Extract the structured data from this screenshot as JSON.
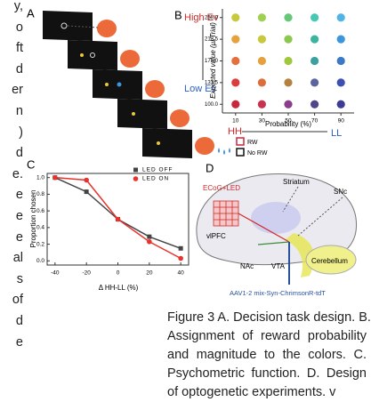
{
  "left_text": [
    "y,",
    "o",
    "ft",
    "d",
    "er",
    "n",
    ")",
    "d",
    "e.",
    "e",
    "e",
    "e",
    "al",
    "s",
    "of",
    "d",
    "e"
  ],
  "panel_a": {
    "label": "A",
    "legend": [
      "RW",
      "No RW"
    ]
  },
  "panel_b": {
    "label": "B",
    "high": "High Ev",
    "low": "Low Ev",
    "hh": "HH",
    "ll": "LL",
    "chart": {
      "type": "scatter",
      "y_label": "Expected value (µl/Trial)",
      "x_label": "Probability (%)",
      "x": [
        10,
        30,
        50,
        70,
        90,
        10,
        30,
        50,
        70,
        90,
        10,
        30,
        50,
        70,
        90,
        10,
        30,
        50,
        70,
        90,
        10,
        30,
        50,
        70,
        90
      ],
      "y": [
        250,
        250,
        250,
        250,
        250,
        212.5,
        212.5,
        212.5,
        212.5,
        212.5,
        175,
        175,
        175,
        175,
        175,
        137.5,
        137.5,
        137.5,
        137.5,
        137.5,
        100,
        100,
        100,
        100,
        100
      ],
      "colors": [
        "#c8c83c",
        "#a0d050",
        "#64c878",
        "#46c8b4",
        "#50b4e6",
        "#e6a03c",
        "#c8c83c",
        "#8cc850",
        "#3cb4a0",
        "#3c96dc",
        "#e66e3c",
        "#e6a03c",
        "#a0c83c",
        "#3ca0a0",
        "#3c78c8",
        "#dc3c3c",
        "#dc6e3c",
        "#b4823c",
        "#5a64a0",
        "#3c50b4",
        "#c8283c",
        "#c83250",
        "#8c3c8c",
        "#50468c",
        "#3c3c96"
      ],
      "xlim": [
        0,
        100
      ],
      "ylim": [
        85,
        265
      ],
      "xticks": [
        10,
        30,
        50,
        70,
        90
      ],
      "yticks": [
        {
          "value": 100,
          "label": "100.0"
        },
        137.5,
        {
          "value": 175,
          "label": "175.0"
        },
        212.5,
        {
          "value": 250,
          "label": "250.0"
        }
      ]
    }
  },
  "panel_c": {
    "label": "C",
    "chart": {
      "type": "line",
      "x_label": "Δ HH-LL (%)",
      "y_label": "Proportion chosen",
      "x": [
        -40,
        -20,
        0,
        20,
        40
      ],
      "series": [
        {
          "name": "LED OFF",
          "color": "#444444",
          "marker": "square",
          "values": [
            1.0,
            0.83,
            0.5,
            0.29,
            0.15
          ]
        },
        {
          "name": "LED ON",
          "color": "#e8322d",
          "marker": "circle",
          "values": [
            1.0,
            0.97,
            0.5,
            0.23,
            0.03
          ]
        }
      ],
      "xlim": [
        -45,
        45
      ],
      "ylim": [
        -0.05,
        1.05
      ],
      "xticks": [
        -40,
        -20,
        0,
        20,
        40
      ],
      "yticks": [
        {
          "value": 0,
          "label": "0.0"
        },
        0.2,
        0.4,
        0.6,
        0.8,
        {
          "value": 1,
          "label": "1.0"
        }
      ]
    }
  },
  "panel_d": {
    "label": "D",
    "ecog": "ECoG+LED",
    "striatum": "Striatum",
    "snc": "SNc",
    "vlpfc": "vlPFC",
    "nac": "NAc",
    "vta": "VTA",
    "cerebellum": "Cerebellum",
    "virus": "AAV1-2 mix-Syn-ChrimsonR-tdT"
  },
  "caption": {
    "lines": [
      "Figure 3 A. Decision task design. B.",
      "Assignment of reward probability",
      "and magnitude to the colors. C.",
      "Psychometric function. D. Design",
      "of optogenetic experiments.  v"
    ]
  }
}
